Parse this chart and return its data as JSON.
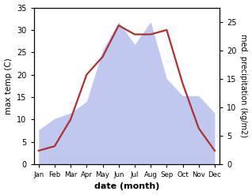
{
  "months": [
    "Jan",
    "Feb",
    "Mar",
    "Apr",
    "May",
    "Jun",
    "Jul",
    "Aug",
    "Sep",
    "Oct",
    "Nov",
    "Dec"
  ],
  "temperature": [
    3,
    4,
    10,
    20,
    24,
    31,
    29,
    29,
    30,
    18,
    8,
    3
  ],
  "precipitation": [
    6,
    8,
    9,
    11,
    20,
    25,
    21,
    25,
    15,
    12,
    12,
    9
  ],
  "temp_color": "#b03030",
  "precip_fill_color": "#c0c8f0",
  "left_ylabel": "max temp (C)",
  "right_ylabel": "med. precipitation (kg/m2)",
  "xlabel": "date (month)",
  "ylim_left": [
    0,
    35
  ],
  "ylim_right": [
    0,
    27.5
  ],
  "temp_linewidth": 1.6,
  "label_fontsize": 7.5
}
